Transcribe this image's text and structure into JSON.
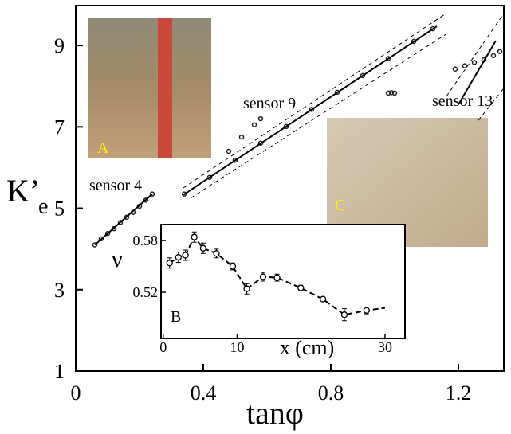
{
  "chart_data": [
    {
      "type": "scatter",
      "xlabel": "tanφ",
      "ylabel": "K’",
      "ylabel_sub": "e",
      "xlim": [
        0,
        1.3425
      ],
      "ylim": [
        1,
        9.98
      ],
      "xticks": [
        0,
        0.4,
        0.8,
        1.2
      ],
      "yticks": [
        1,
        3,
        5,
        7,
        9
      ],
      "annotations": [
        "sensor 4",
        "sensor 9",
        "sensor 13",
        "A",
        "C"
      ],
      "series": [
        {
          "mode": "markers",
          "color": "#222222",
          "x": [
            0.06,
            0.08,
            0.1,
            0.12,
            0.14,
            0.16,
            0.18,
            0.2,
            0.22,
            0.24
          ],
          "values": [
            4.1,
            4.25,
            4.38,
            4.5,
            4.65,
            4.78,
            4.9,
            5.05,
            5.2,
            5.35
          ]
        },
        {
          "mode": "markers",
          "color": "#222222",
          "x": [
            0.34,
            0.42,
            0.48,
            0.5,
            0.52,
            0.56,
            0.58,
            0.58,
            0.66,
            0.74,
            0.82,
            0.9,
            0.98,
            1.06,
            1.12
          ],
          "values": [
            5.35,
            5.76,
            6.4,
            6.18,
            6.75,
            7.05,
            7.2,
            6.6,
            7.01,
            7.43,
            7.85,
            8.26,
            8.68,
            9.1,
            9.41
          ]
        },
        {
          "mode": "markers",
          "color": "#222222",
          "x": [
            0.98,
            0.99,
            1.0,
            1.19,
            1.22,
            1.25,
            1.28,
            1.31,
            1.33
          ],
          "values": [
            7.83,
            7.84,
            7.83,
            8.42,
            8.5,
            8.58,
            8.65,
            8.75,
            8.85
          ]
        },
        {
          "mode": "line",
          "dash": false,
          "color": "#000000",
          "x": [
            0.06,
            0.24
          ],
          "values": [
            4.1,
            5.35
          ]
        },
        {
          "mode": "line",
          "dash": false,
          "color": "#000000",
          "x": [
            0.3375,
            1.1325
          ],
          "values": [
            5.33,
            9.47
          ]
        },
        {
          "mode": "line",
          "dash": true,
          "color": "#000000",
          "x": [
            0.3375,
            1.16
          ],
          "values": [
            5.5,
            9.78
          ]
        },
        {
          "mode": "line",
          "dash": true,
          "color": "#000000",
          "x": [
            0.36,
            1.16
          ],
          "values": [
            5.25,
            9.27
          ]
        },
        {
          "mode": "line",
          "dash": false,
          "color": "#000000",
          "x": [
            1.2,
            1.3175
          ],
          "values": [
            7.55,
            9.12
          ]
        },
        {
          "mode": "line",
          "dash": true,
          "color": "#000000",
          "x": [
            1.1625,
            1.3375
          ],
          "values": [
            7.75,
            9.73
          ]
        },
        {
          "mode": "line",
          "dash": true,
          "color": "#000000",
          "x": [
            1.2625,
            1.3425
          ],
          "values": [
            7.16,
            7.95
          ]
        }
      ]
    },
    {
      "type": "line",
      "xlabel": "x (cm)",
      "ylabel": "ν",
      "annotation": "B",
      "xlim": [
        -0.3,
        32.7
      ],
      "ylim": [
        0.4665,
        0.5985
      ],
      "xticks": [
        0,
        10,
        30
      ],
      "yticks": [
        0.52,
        0.58
      ],
      "series": [
        {
          "color": "#000000",
          "dash": true,
          "x": [
            0.86,
            2.05,
            3.0,
            4.2,
            5.4,
            7.2,
            9.4,
            11.3,
            13.5,
            15.4,
            18.6,
            21.6,
            24.5,
            27.5,
            30
          ],
          "values": [
            0.554,
            0.5605,
            0.563,
            0.584,
            0.571,
            0.565,
            0.55,
            0.524,
            0.538,
            0.537,
            0.525,
            0.512,
            0.494,
            0.499,
            0.502
          ],
          "errors": [
            0.006,
            0.006,
            0.006,
            0.006,
            0.006,
            0.005,
            0.004,
            0.006,
            0.005,
            0.004,
            0.003,
            0.002,
            0.007,
            0.004,
            null
          ]
        }
      ]
    }
  ]
}
